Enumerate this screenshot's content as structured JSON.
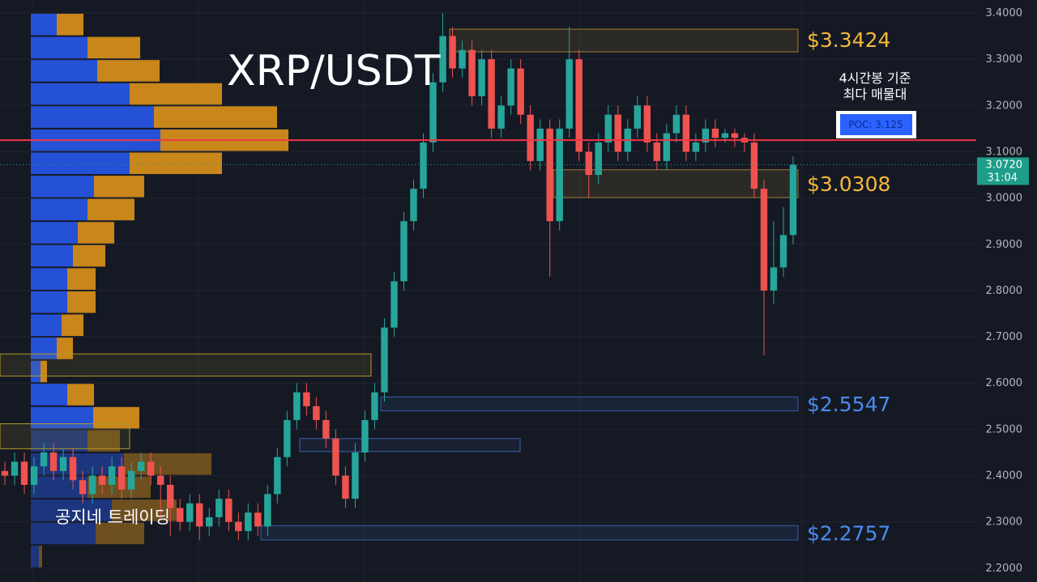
{
  "chart_data": {
    "type": "candlestick",
    "title": "XRP/USDT",
    "watermark": "공지네 트레이딩",
    "annotation": [
      "4시간봉 기준",
      "최다 매물대"
    ],
    "ylim": [
      2.17,
      3.428
    ],
    "yticks": [
      {
        "value": 2.2,
        "label": "2.2000"
      },
      {
        "value": 2.3,
        "label": "2.3000"
      },
      {
        "value": 2.4,
        "label": "2.4000"
      },
      {
        "value": 2.5,
        "label": "2.5000"
      },
      {
        "value": 2.6,
        "label": "2.6000"
      },
      {
        "value": 2.7,
        "label": "2.7000"
      },
      {
        "value": 2.8,
        "label": "2.8000"
      },
      {
        "value": 2.9,
        "label": "2.9000"
      },
      {
        "value": 3.0,
        "label": "3.0000"
      },
      {
        "value": 3.1,
        "label": "3.1000"
      },
      {
        "value": 3.2,
        "label": "3.2000"
      },
      {
        "value": 3.3,
        "label": "3.3000"
      },
      {
        "value": 3.4,
        "label": "3.4000"
      }
    ],
    "up_color": "#26a69a",
    "down_color": "#ef5350",
    "candles": [
      [
        2.41,
        2.43,
        2.38,
        2.4
      ],
      [
        2.4,
        2.45,
        2.38,
        2.43
      ],
      [
        2.43,
        2.45,
        2.36,
        2.38
      ],
      [
        2.38,
        2.44,
        2.36,
        2.42
      ],
      [
        2.42,
        2.47,
        2.4,
        2.45
      ],
      [
        2.45,
        2.47,
        2.39,
        2.41
      ],
      [
        2.41,
        2.46,
        2.39,
        2.44
      ],
      [
        2.44,
        2.46,
        2.37,
        2.39
      ],
      [
        2.39,
        2.41,
        2.34,
        2.36
      ],
      [
        2.36,
        2.42,
        2.34,
        2.4
      ],
      [
        2.4,
        2.42,
        2.36,
        2.38
      ],
      [
        2.38,
        2.44,
        2.36,
        2.42
      ],
      [
        2.42,
        2.44,
        2.35,
        2.37
      ],
      [
        2.37,
        2.43,
        2.35,
        2.41
      ],
      [
        2.41,
        2.45,
        2.39,
        2.43
      ],
      [
        2.43,
        2.45,
        2.38,
        2.4
      ],
      [
        2.4,
        2.42,
        2.31,
        2.38
      ],
      [
        2.38,
        2.4,
        2.27,
        2.33
      ],
      [
        2.33,
        2.35,
        2.28,
        2.3
      ],
      [
        2.3,
        2.36,
        2.28,
        2.34
      ],
      [
        2.34,
        2.36,
        2.26,
        2.29
      ],
      [
        2.29,
        2.33,
        2.27,
        2.31
      ],
      [
        2.31,
        2.37,
        2.29,
        2.35
      ],
      [
        2.35,
        2.37,
        2.28,
        2.3
      ],
      [
        2.3,
        2.32,
        2.26,
        2.28
      ],
      [
        2.28,
        2.34,
        2.26,
        2.32
      ],
      [
        2.32,
        2.34,
        2.27,
        2.29
      ],
      [
        2.29,
        2.38,
        2.27,
        2.36
      ],
      [
        2.36,
        2.46,
        2.34,
        2.44
      ],
      [
        2.44,
        2.54,
        2.42,
        2.52
      ],
      [
        2.52,
        2.6,
        2.5,
        2.58
      ],
      [
        2.58,
        2.6,
        2.53,
        2.55
      ],
      [
        2.55,
        2.57,
        2.5,
        2.52
      ],
      [
        2.52,
        2.54,
        2.46,
        2.48
      ],
      [
        2.48,
        2.5,
        2.38,
        2.4
      ],
      [
        2.4,
        2.42,
        2.33,
        2.35
      ],
      [
        2.35,
        2.47,
        2.33,
        2.45
      ],
      [
        2.45,
        2.54,
        2.43,
        2.52
      ],
      [
        2.52,
        2.6,
        2.5,
        2.58
      ],
      [
        2.58,
        2.74,
        2.56,
        2.72
      ],
      [
        2.72,
        2.84,
        2.7,
        2.82
      ],
      [
        2.82,
        2.97,
        2.8,
        2.95
      ],
      [
        2.95,
        3.04,
        2.93,
        3.02
      ],
      [
        3.02,
        3.14,
        3.0,
        3.12
      ],
      [
        3.12,
        3.27,
        3.1,
        3.25
      ],
      [
        3.25,
        3.4,
        3.23,
        3.35
      ],
      [
        3.35,
        3.37,
        3.26,
        3.28
      ],
      [
        3.28,
        3.34,
        3.26,
        3.32
      ],
      [
        3.32,
        3.34,
        3.2,
        3.22
      ],
      [
        3.22,
        3.32,
        3.2,
        3.3
      ],
      [
        3.3,
        3.32,
        3.13,
        3.15
      ],
      [
        3.15,
        3.22,
        3.13,
        3.2
      ],
      [
        3.2,
        3.3,
        3.18,
        3.28
      ],
      [
        3.28,
        3.3,
        3.16,
        3.18
      ],
      [
        3.18,
        3.2,
        3.06,
        3.08
      ],
      [
        3.08,
        3.17,
        3.06,
        3.15
      ],
      [
        3.15,
        3.17,
        2.83,
        2.95
      ],
      [
        2.95,
        3.17,
        2.93,
        3.15
      ],
      [
        3.15,
        3.37,
        3.13,
        3.3
      ],
      [
        3.3,
        3.32,
        3.08,
        3.1
      ],
      [
        3.1,
        3.12,
        3.0,
        3.05
      ],
      [
        3.05,
        3.14,
        3.03,
        3.12
      ],
      [
        3.12,
        3.2,
        3.1,
        3.18
      ],
      [
        3.18,
        3.2,
        3.08,
        3.1
      ],
      [
        3.1,
        3.17,
        3.08,
        3.15
      ],
      [
        3.15,
        3.22,
        3.13,
        3.2
      ],
      [
        3.2,
        3.22,
        3.1,
        3.12
      ],
      [
        3.12,
        3.14,
        3.06,
        3.08
      ],
      [
        3.08,
        3.16,
        3.06,
        3.14
      ],
      [
        3.14,
        3.2,
        3.12,
        3.18
      ],
      [
        3.18,
        3.2,
        3.08,
        3.1
      ],
      [
        3.1,
        3.14,
        3.08,
        3.12
      ],
      [
        3.12,
        3.17,
        3.1,
        3.15
      ],
      [
        3.15,
        3.17,
        3.11,
        3.13
      ],
      [
        3.13,
        3.15,
        3.12,
        3.14
      ],
      [
        3.14,
        3.15,
        3.11,
        3.13
      ],
      [
        3.13,
        3.14,
        3.1,
        3.12
      ],
      [
        3.12,
        3.14,
        3.0,
        3.02
      ],
      [
        3.02,
        3.04,
        2.66,
        2.8
      ],
      [
        2.8,
        2.95,
        2.77,
        2.85
      ],
      [
        2.85,
        2.98,
        2.83,
        2.92
      ],
      [
        2.92,
        3.09,
        2.9,
        3.072
      ]
    ],
    "volume_profile": {
      "prices": [
        3.4,
        3.35,
        3.3,
        3.25,
        3.2,
        3.15,
        3.1,
        3.05,
        3.0,
        2.95,
        2.9,
        2.85,
        2.8,
        2.75,
        2.7,
        2.65,
        2.6,
        2.55,
        2.5,
        2.45,
        2.4,
        2.35,
        2.3,
        2.25
      ],
      "buy": [
        32,
        70,
        82,
        122,
        152,
        160,
        122,
        78,
        70,
        58,
        52,
        45,
        45,
        38,
        32,
        12,
        45,
        77,
        70,
        115,
        70,
        100,
        80,
        10
      ],
      "sell": [
        33,
        65,
        77,
        114,
        152,
        158,
        114,
        62,
        58,
        45,
        40,
        35,
        35,
        27,
        20,
        8,
        33,
        57,
        40,
        108,
        78,
        80,
        60,
        4
      ],
      "buy_color": "#2451d6",
      "sell_color": "#c8861b"
    },
    "levels": [
      {
        "value": 3.3424,
        "label": "$3.3424",
        "color": "#f5b83a",
        "zone": [
          3.316,
          3.365
        ]
      },
      {
        "value": 3.0308,
        "label": "$3.0308",
        "color": "#f5b83a",
        "zone": [
          3.001,
          3.061
        ]
      },
      {
        "value": 2.5547,
        "label": "$2.5547",
        "color": "#4a8cf0",
        "zone": [
          2.54,
          2.57
        ]
      },
      {
        "value": 2.2757,
        "label": "$2.2757",
        "color": "#4a8cf0",
        "zone": [
          2.261,
          2.292
        ]
      }
    ],
    "zones": [
      {
        "range": [
          2.615,
          2.663
        ],
        "color": "#b39a2c"
      },
      {
        "range": [
          2.452,
          2.48
        ],
        "color": "#3c63a8"
      },
      {
        "range": [
          2.458,
          2.512
        ],
        "color": "#b39a2c"
      }
    ],
    "poc": {
      "value": 3.125,
      "label": "POC: 3.125",
      "color": "#f23645"
    },
    "last_price": {
      "value": 3.072,
      "label": "3.0720",
      "color": "#1e9e8a"
    },
    "countdown": "31:04"
  }
}
